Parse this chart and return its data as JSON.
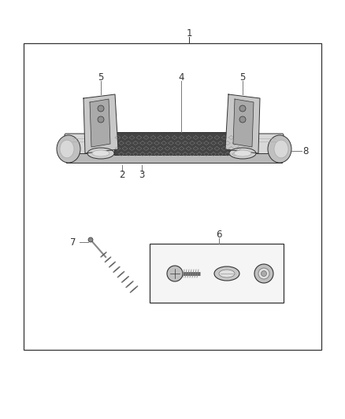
{
  "bg_color": "#ffffff",
  "border_color": "#222222",
  "part_stroke": "#333333",
  "part_fill_light": "#e8e8e8",
  "part_fill_mid": "#c8c8c8",
  "part_fill_dark": "#888888",
  "grip_fill": "#555555",
  "label_color": "#333333",
  "label_fontsize": 8.5,
  "line_lw": 0.7
}
